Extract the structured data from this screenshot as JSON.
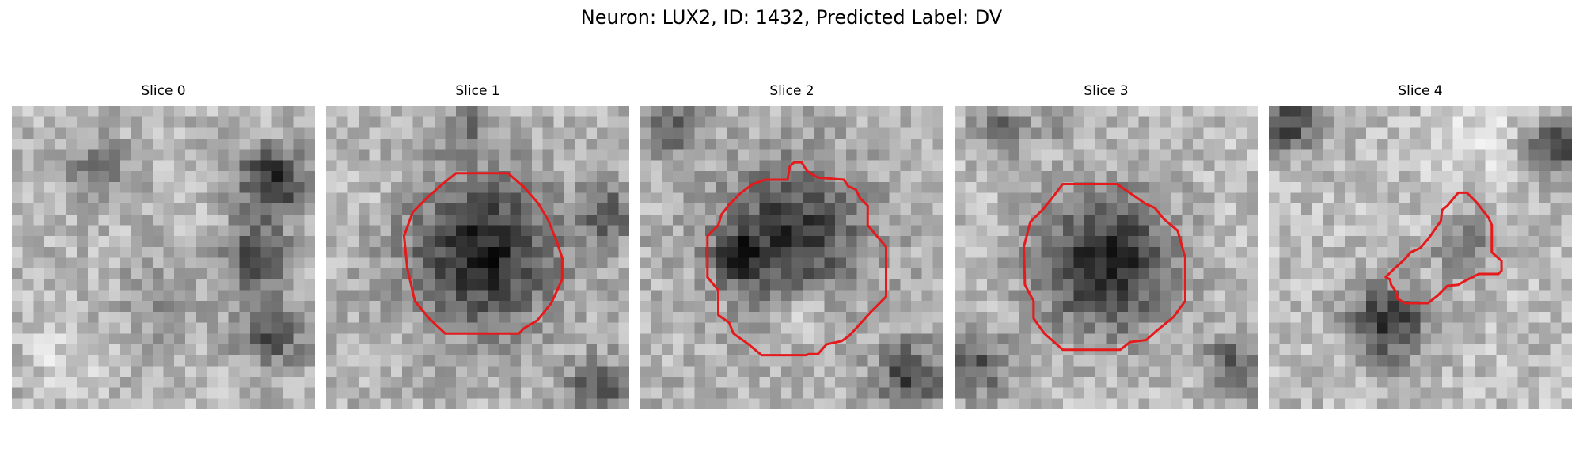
{
  "figure": {
    "title": "Neuron: LUX2, ID: 1432, Predicted Label: DV",
    "outline_color": "#e41a1c",
    "colormap": "gray"
  },
  "panels": [
    {
      "label": "Slice 0",
      "has_outline": false
    },
    {
      "label": "Slice 1",
      "has_outline": true
    },
    {
      "label": "Slice 2",
      "has_outline": true
    },
    {
      "label": "Slice 3",
      "has_outline": true
    },
    {
      "label": "Slice 4",
      "has_outline": true
    }
  ]
}
